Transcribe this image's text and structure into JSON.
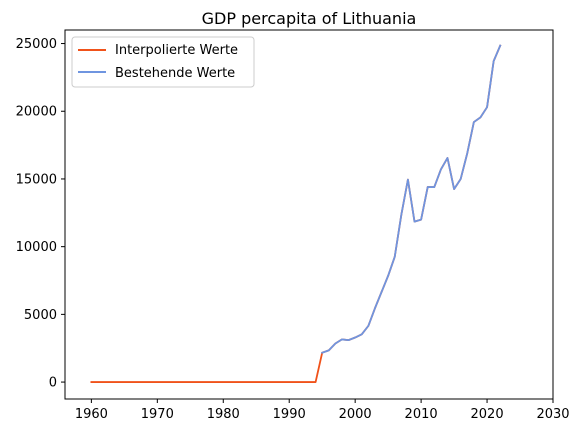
{
  "chart_data": {
    "type": "line",
    "title": "GDP percapita of Lithuania",
    "xlabel": "",
    "ylabel": "",
    "xlim": [
      1956,
      2030
    ],
    "ylim": [
      -1250,
      26000
    ],
    "xticks": [
      1960,
      1970,
      1980,
      1990,
      2000,
      2010,
      2020,
      2030
    ],
    "yticks": [
      0,
      5000,
      10000,
      15000,
      20000,
      25000
    ],
    "grid": false,
    "legend_position": "top-left",
    "series": [
      {
        "name": "Interpolierte Werte",
        "color": "#f0521a",
        "x": [
          1960,
          1961,
          1962,
          1963,
          1964,
          1965,
          1966,
          1967,
          1968,
          1969,
          1970,
          1971,
          1972,
          1973,
          1974,
          1975,
          1976,
          1977,
          1978,
          1979,
          1980,
          1981,
          1982,
          1983,
          1984,
          1985,
          1986,
          1987,
          1988,
          1989,
          1990,
          1991,
          1992,
          1993,
          1994,
          1995,
          1996,
          1997,
          1998,
          1999,
          2000,
          2001,
          2002,
          2003,
          2004,
          2005,
          2006,
          2007,
          2008,
          2009,
          2010,
          2011,
          2012,
          2013,
          2014,
          2015,
          2016,
          2017,
          2018,
          2019,
          2020,
          2021,
          2022
        ],
        "y": [
          0,
          0,
          0,
          0,
          0,
          0,
          0,
          0,
          0,
          0,
          0,
          0,
          0,
          0,
          0,
          0,
          0,
          0,
          0,
          0,
          0,
          0,
          0,
          0,
          0,
          0,
          0,
          0,
          0,
          0,
          0,
          0,
          0,
          0,
          0,
          2170,
          2340,
          2850,
          3150,
          3100,
          3290,
          3530,
          4150,
          5450,
          6650,
          7850,
          9250,
          12350,
          14950,
          11850,
          12000,
          14400,
          14400,
          15700,
          16550,
          14250,
          15000,
          16900,
          19200,
          19550,
          20300,
          23700,
          24850
        ]
      },
      {
        "name": "Bestehende Werte",
        "color": "#6f95e0",
        "x": [
          1995,
          1996,
          1997,
          1998,
          1999,
          2000,
          2001,
          2002,
          2003,
          2004,
          2005,
          2006,
          2007,
          2008,
          2009,
          2010,
          2011,
          2012,
          2013,
          2014,
          2015,
          2016,
          2017,
          2018,
          2019,
          2020,
          2021,
          2022
        ],
        "y": [
          2170,
          2340,
          2850,
          3150,
          3100,
          3290,
          3530,
          4150,
          5450,
          6650,
          7850,
          9250,
          12350,
          14950,
          11850,
          12000,
          14400,
          14400,
          15700,
          16550,
          14250,
          15000,
          16900,
          19200,
          19550,
          20300,
          23700,
          24850
        ]
      }
    ]
  }
}
